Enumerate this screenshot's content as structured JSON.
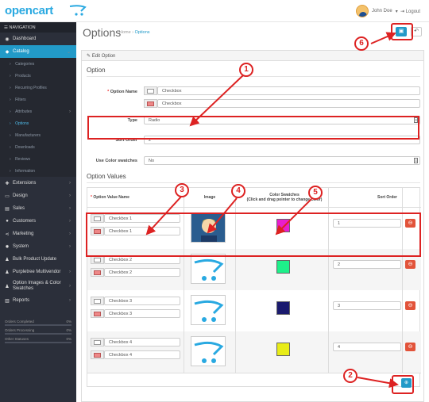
{
  "header": {
    "logo": "opencart",
    "user_name": "John Doe",
    "logout_label": "Logout"
  },
  "sidebar": {
    "nav_title": "NAVIGATION",
    "items": [
      {
        "label": "Dashboard",
        "icon": "dashboard-icon"
      },
      {
        "label": "Catalog",
        "icon": "tag-icon"
      },
      {
        "label": "Extensions",
        "icon": "puzzle-icon"
      },
      {
        "label": "Design",
        "icon": "monitor-icon"
      },
      {
        "label": "Sales",
        "icon": "cart-icon"
      },
      {
        "label": "Customers",
        "icon": "user-icon"
      },
      {
        "label": "Marketing",
        "icon": "share-icon"
      },
      {
        "label": "System",
        "icon": "gear-icon"
      },
      {
        "label": "Bulk Product Update",
        "icon": "person-icon"
      },
      {
        "label": "Purpletree Multivendor",
        "icon": "users-icon"
      },
      {
        "label": "Option Images & Color Swatches",
        "icon": "person-icon"
      },
      {
        "label": "Reports",
        "icon": "bar-chart-icon"
      }
    ],
    "catalog_sub": [
      "Categories",
      "Products",
      "Recurring Profiles",
      "Filters",
      "Attributes",
      "Options",
      "Manufacturers",
      "Downloads",
      "Reviews",
      "Information"
    ],
    "stats": [
      {
        "label": "Orders Completed",
        "value": "0%",
        "fraction": 0
      },
      {
        "label": "Orders Processing",
        "value": "0%",
        "fraction": 0
      },
      {
        "label": "Other Statuses",
        "value": "0%",
        "fraction": 0
      }
    ]
  },
  "page": {
    "title": "Options",
    "breadcrumb_home": "Home",
    "breadcrumb_current": "Options",
    "panel_title": "Edit Option"
  },
  "form": {
    "section_option": "Option",
    "option_name_label": "Option Name",
    "option_name_values": [
      "Checkbox",
      "Checkbox"
    ],
    "type_label": "Type",
    "type_value": "Radio",
    "sort_order_label": "Sort Order",
    "sort_order_value": "2",
    "color_swatches_label": "Use Color swatches",
    "color_swatches_value": "No",
    "section_values": "Option Values"
  },
  "table": {
    "col_value_name": "Option Value Name",
    "col_image": "Image",
    "col_swatches_line1": "Color Swatches",
    "col_swatches_line2": "(Click and drag pointer to change color)",
    "col_sort": "Sort Order",
    "rows": [
      {
        "names": [
          "Checkbox 1",
          "Checkbox 1"
        ],
        "image": "avatar-image",
        "swatch": "#e81ecf",
        "sort": "1"
      },
      {
        "names": [
          "Checkbox 2",
          "Checkbox 2"
        ],
        "image": "opencart-cart-image",
        "swatch": "#1ef08a",
        "sort": "2"
      },
      {
        "names": [
          "Checkbox 3",
          "Checkbox 3"
        ],
        "image": "opencart-cart-image",
        "swatch": "#1a1a6e",
        "sort": "3"
      },
      {
        "names": [
          "Checkbox 4",
          "Checkbox 4"
        ],
        "image": "opencart-cart-image",
        "swatch": "#e8ec17",
        "sort": "4"
      }
    ]
  },
  "callouts": [
    "1",
    "2",
    "3",
    "4",
    "5",
    "6"
  ],
  "colors": {
    "accent": "#229ac8",
    "sidebar": "#2b2f3a",
    "danger": "#e2533a",
    "annotation": "#dd2222"
  }
}
